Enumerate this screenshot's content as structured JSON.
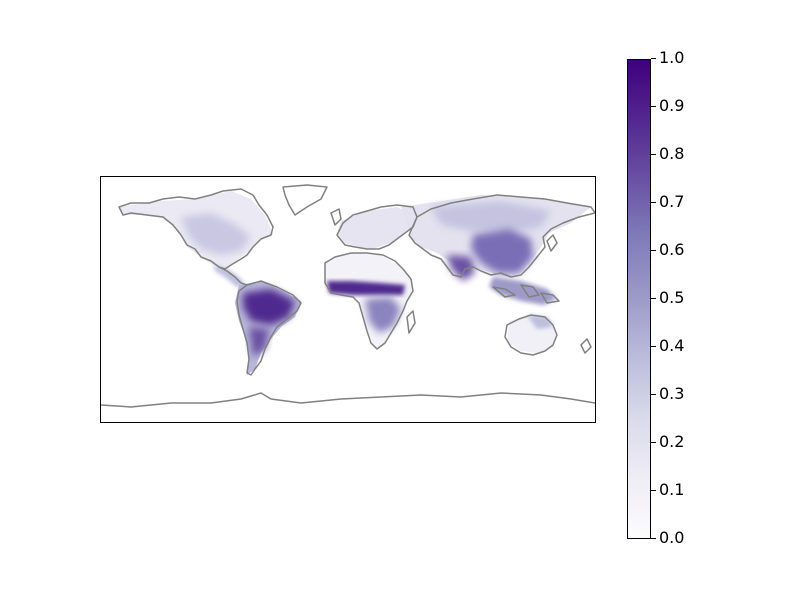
{
  "colorbar": {
    "ticks": [
      "0.0",
      "0.1",
      "0.2",
      "0.3",
      "0.4",
      "0.5",
      "0.6",
      "0.7",
      "0.8",
      "0.9",
      "1.0"
    ],
    "vmin": 0.0,
    "vmax": 1.0,
    "colormap": [
      "#fcfbfd",
      "#efedf5",
      "#dadaeb",
      "#bcbddc",
      "#9e9ac8",
      "#807dba",
      "#6a51a3",
      "#54278f",
      "#3f007d"
    ]
  },
  "map": {
    "projection": "equirectangular",
    "coastline_color": "#808080",
    "background": "#ffffff"
  }
}
